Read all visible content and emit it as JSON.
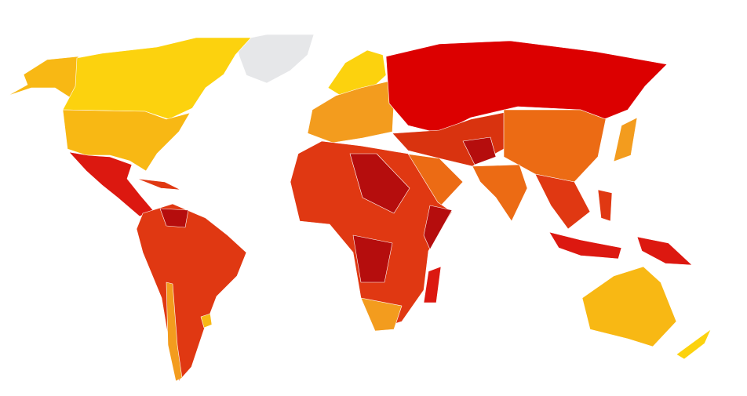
{
  "map": {
    "palette": [
      "#e6e7e9",
      "#fcd20e",
      "#f8b814",
      "#dc1810",
      "#e03812",
      "#b50d0d",
      "#f39c1e",
      "#ec6b14",
      "#dc0000",
      "#d9330f"
    ]
  }
}
